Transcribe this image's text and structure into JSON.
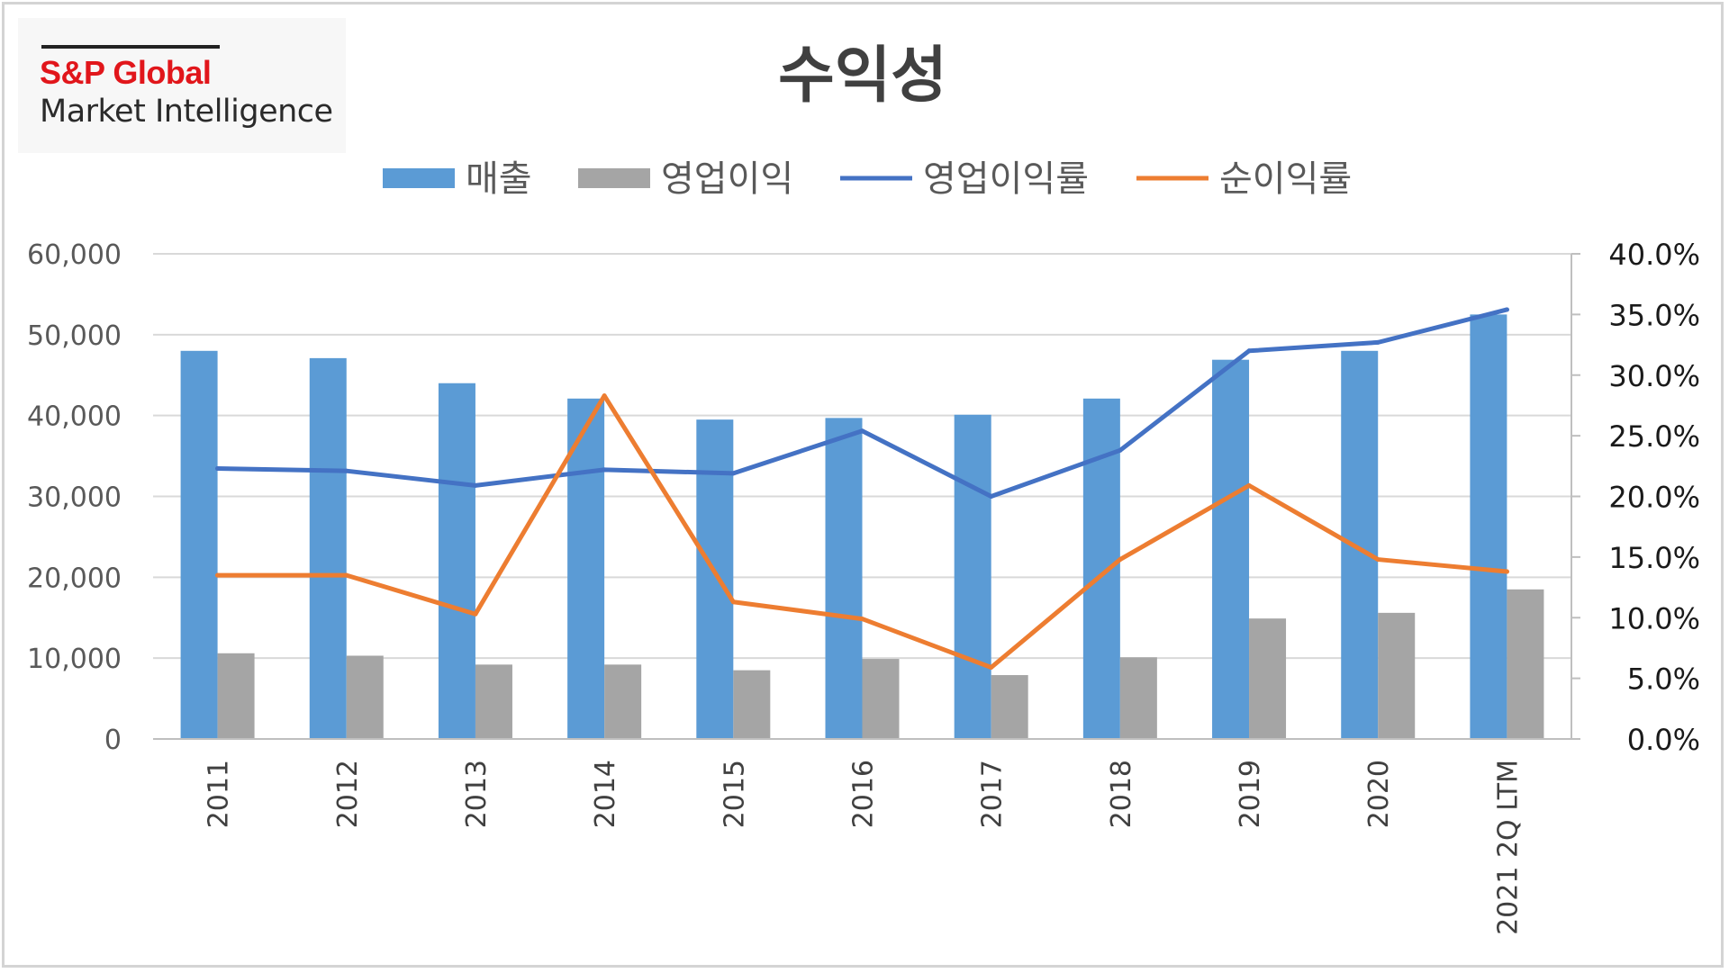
{
  "logo": {
    "brand": "S&P Global",
    "sub": "Market Intelligence"
  },
  "colors": {
    "revenue": "#5b9bd5",
    "op_income": "#a5a5a5",
    "op_margin": "#4472c4",
    "net_margin": "#ed7d31",
    "grid": "#d9d9d9",
    "axis": "#bfbfbf"
  },
  "chart_data": {
    "type": "bar",
    "title": "수익성",
    "legend_position": "top",
    "grid": true,
    "categories": [
      "2011",
      "2012",
      "2013",
      "2014",
      "2015",
      "2016",
      "2017",
      "2018",
      "2019",
      "2020",
      "2021 2Q LTM"
    ],
    "series": [
      {
        "name": "매출",
        "type": "bar",
        "axis": "left",
        "values": [
          48000,
          47100,
          44000,
          42100,
          39500,
          39700,
          40100,
          42100,
          46900,
          48000,
          52500
        ]
      },
      {
        "name": "영업이익",
        "type": "bar",
        "axis": "left",
        "values": [
          10600,
          10300,
          9200,
          9200,
          8500,
          9900,
          7900,
          10100,
          14900,
          15600,
          18500
        ]
      },
      {
        "name": "영업이익률",
        "type": "line",
        "axis": "right",
        "values": [
          22.3,
          22.1,
          20.9,
          22.2,
          21.9,
          25.4,
          20.0,
          23.8,
          32.0,
          32.7,
          35.4
        ]
      },
      {
        "name": "순이익률",
        "type": "line",
        "axis": "right",
        "values": [
          13.5,
          13.5,
          10.3,
          28.3,
          11.3,
          9.9,
          5.9,
          14.8,
          20.9,
          14.8,
          13.8
        ]
      }
    ],
    "y_left": {
      "min": 0,
      "max": 60000,
      "ticks": [
        "0",
        "10,000",
        "20,000",
        "30,000",
        "40,000",
        "50,000",
        "60,000"
      ]
    },
    "y_right": {
      "min": 0,
      "max": 40,
      "ticks": [
        "0.0%",
        "5.0%",
        "10.0%",
        "15.0%",
        "20.0%",
        "25.0%",
        "30.0%",
        "35.0%",
        "40.0%"
      ]
    }
  }
}
